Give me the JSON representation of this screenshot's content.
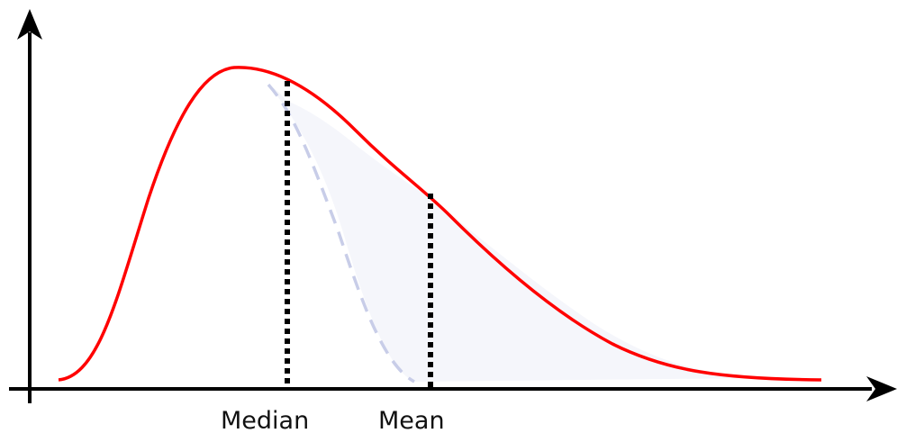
{
  "labels": {
    "median": "Median",
    "mean": "Mean"
  },
  "colors": {
    "background": "#ffffff",
    "axis": "#000000",
    "curve": "#ff0000",
    "dashed_curve": "#c8cde8",
    "shaded_area": "#f5f6fb",
    "marker_line": "#000000",
    "label_text": "#111111"
  }
}
